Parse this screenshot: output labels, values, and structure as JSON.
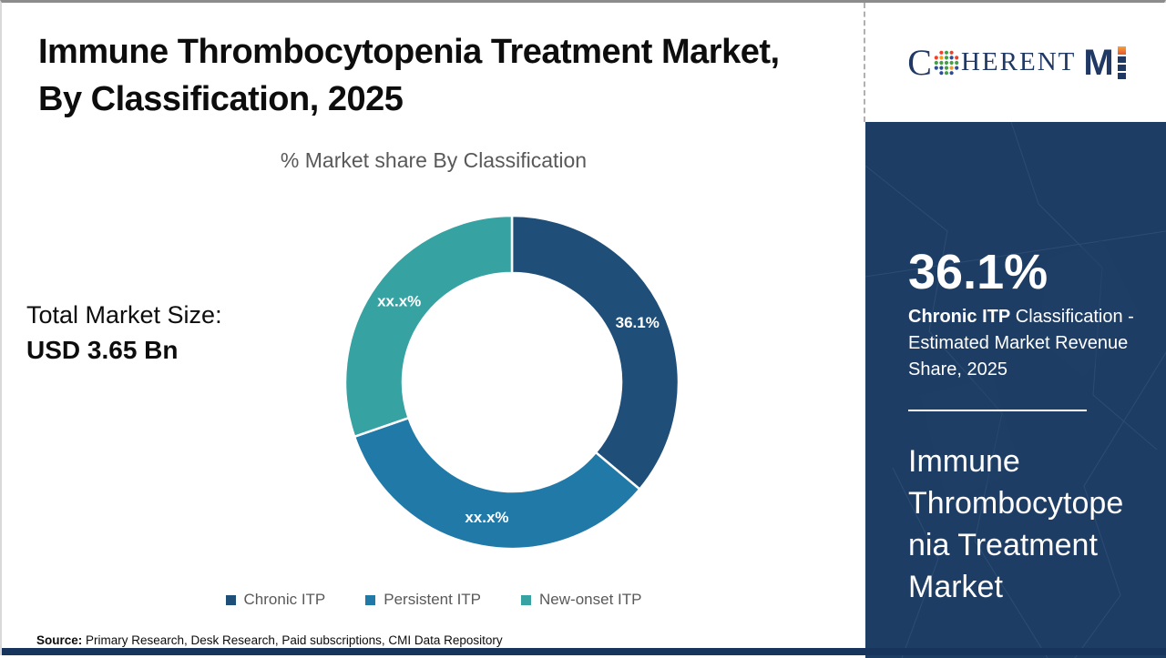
{
  "header": {
    "title_line1": "Immune Thrombocytopenia Treatment Market,",
    "title_line2": "By Classification, 2025"
  },
  "logo": {
    "part1": "C",
    "part2": "HERENT",
    "part3": "M",
    "globe_icon": "dotted-globe",
    "brand_navy": "#1f3864",
    "accent_orange": "#ef6d2f"
  },
  "left_panel": {
    "total_label": "Total Market Size:",
    "total_value": "USD 3.65 Bn"
  },
  "sidebar": {
    "stat_value": "36.1%",
    "stat_bold": "Chronic ITP",
    "stat_rest": " Classification - Estimated Market Revenue Share, 2025",
    "market_name": "Immune Thrombocytopenia Treatment Market",
    "background": "#1e3d64"
  },
  "footer": {
    "source_label": "Source:",
    "source_text": " Primary Research, Desk Research, Paid subscriptions, CMI Data Repository"
  },
  "chart_data": {
    "type": "pie",
    "donut": true,
    "title": "% Market share By Classification",
    "categories": [
      "Chronic ITP",
      "Persistent ITP",
      "New-onset ITP"
    ],
    "values": [
      36.1,
      33.6,
      30.3
    ],
    "display_labels": [
      "36.1%",
      "xx.x%",
      "xx.x%"
    ],
    "colors": [
      "#1f4e79",
      "#2179a7",
      "#37a2a2"
    ],
    "start_angle_deg": 0,
    "outer_radius": 183,
    "inner_radius": 120,
    "label_radius": 152,
    "legend_position": "bottom",
    "note": "Persistent and New-onset shares are masked as xx.x% in source; values estimated from arc angles"
  }
}
